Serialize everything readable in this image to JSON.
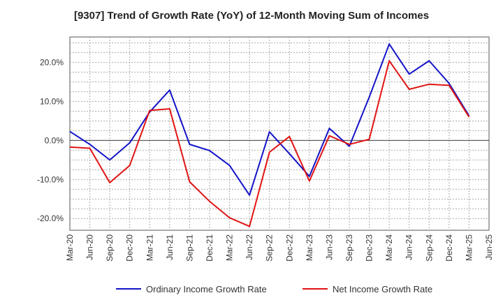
{
  "chart_data": {
    "type": "line",
    "title": "[9307]  Trend of Growth Rate (YoY) of 12-Month Moving Sum of Incomes",
    "xlabel": "",
    "ylabel": "",
    "x_ticks": [
      "Mar-20",
      "Jun-20",
      "Sep-20",
      "Dec-20",
      "Mar-21",
      "Jun-21",
      "Sep-21",
      "Dec-21",
      "Mar-22",
      "Jun-22",
      "Sep-22",
      "Dec-22",
      "Mar-23",
      "Jun-23",
      "Sep-23",
      "Dec-23",
      "Mar-24",
      "Jun-24",
      "Sep-24",
      "Dec-24",
      "Mar-25",
      "Jun-25"
    ],
    "y_ticks": [
      "-20.0%",
      "-10.0%",
      "0.0%",
      "10.0%",
      "20.0%"
    ],
    "y_tick_values": [
      -20,
      -10,
      0,
      10,
      20
    ],
    "ylim": [
      -23,
      26.5
    ],
    "grid": true,
    "legend_position": "bottom",
    "x": [
      "Mar-20",
      "Jun-20",
      "Sep-20",
      "Dec-20",
      "Mar-21",
      "Jun-21",
      "Sep-21",
      "Dec-21",
      "Mar-22",
      "Jun-22",
      "Sep-22",
      "Dec-22",
      "Mar-23",
      "Jun-23",
      "Sep-23",
      "Dec-23",
      "Mar-24",
      "Jun-24",
      "Sep-24",
      "Dec-24",
      "Mar-25"
    ],
    "series": [
      {
        "name": "Ordinary Income Growth Rate",
        "color": "#1414c8",
        "values": [
          2.3,
          -1.0,
          -5.0,
          -0.6,
          7.3,
          12.9,
          -1.0,
          -2.6,
          -6.4,
          -14.0,
          2.2,
          -3.4,
          -9.2,
          3.1,
          -1.5,
          11.1,
          24.7,
          17.0,
          20.4,
          14.6,
          6.3
        ]
      },
      {
        "name": "Net Income Growth Rate",
        "color": "#e01414",
        "values": [
          -1.7,
          -2.0,
          -10.8,
          -6.4,
          7.7,
          8.1,
          -10.6,
          -15.6,
          -19.8,
          -22.0,
          -3.0,
          1.0,
          -10.4,
          1.2,
          -1.0,
          0.3,
          20.4,
          13.1,
          14.4,
          14.1,
          6.0
        ]
      }
    ]
  }
}
